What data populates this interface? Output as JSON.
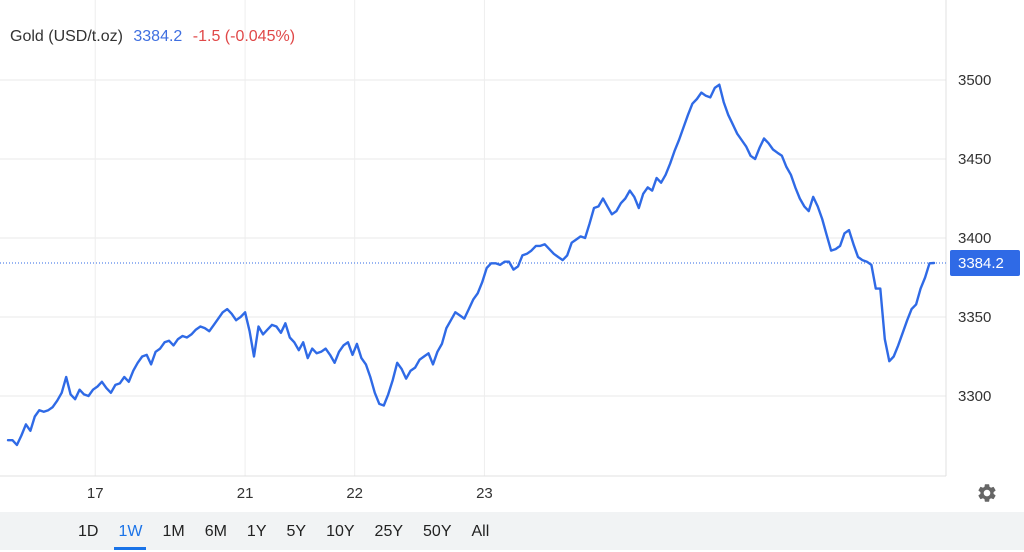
{
  "header": {
    "instrument": "Gold (USD/t.oz)",
    "price": "3384.2",
    "change": "-1.5 (-0.045%)"
  },
  "colors": {
    "line": "#2f6ae6",
    "price": "#3f6fe0",
    "change_negative": "#e04848",
    "active_range": "#1a73e8"
  },
  "ranges": {
    "items": [
      "1D",
      "1W",
      "1M",
      "6M",
      "1Y",
      "5Y",
      "10Y",
      "25Y",
      "50Y",
      "All"
    ],
    "active": "1W"
  },
  "settings_icon": "gear-icon",
  "chart_data": {
    "type": "line",
    "title": "Gold (USD/t.oz)",
    "xlabel": "",
    "ylabel": "",
    "ylim": [
      3250,
      3540
    ],
    "yticks": [
      3300,
      3350,
      3400,
      3450,
      3500
    ],
    "x_tick_labels": [
      {
        "label": "17",
        "index": 19.5
      },
      {
        "label": "21",
        "index": 53
      },
      {
        "label": "22",
        "index": 77.5
      },
      {
        "label": "23",
        "index": 106.5
      }
    ],
    "grid": "horizontal and at date ticks",
    "current_price": 3384.2,
    "current_price_label": "3384.2",
    "series": [
      {
        "name": "Gold",
        "values": [
          3272,
          3272,
          3269,
          3275,
          3282,
          3278,
          3287,
          3291,
          3290,
          3291,
          3293,
          3297,
          3302,
          3312,
          3301,
          3298,
          3304,
          3301,
          3300,
          3304,
          3306,
          3309,
          3305,
          3302,
          3307,
          3308,
          3312,
          3309,
          3316,
          3321,
          3325,
          3326,
          3320,
          3328,
          3330,
          3334,
          3335,
          3332,
          3336,
          3338,
          3337,
          3339,
          3342,
          3344,
          3343,
          3341,
          3345,
          3349,
          3353,
          3355,
          3352,
          3348,
          3350,
          3353,
          3341,
          3325,
          3344,
          3339,
          3342,
          3345,
          3344,
          3340,
          3346,
          3337,
          3334,
          3329,
          3334,
          3324,
          3330,
          3327,
          3328,
          3330,
          3326,
          3321,
          3328,
          3332,
          3334,
          3326,
          3333,
          3324,
          3320,
          3312,
          3302,
          3295,
          3294,
          3301,
          3310,
          3321,
          3317,
          3311,
          3316,
          3318,
          3323,
          3325,
          3327,
          3320,
          3328,
          3333,
          3343,
          3348,
          3353,
          3351,
          3349,
          3355,
          3361,
          3365,
          3372,
          3381,
          3384,
          3384,
          3383,
          3385,
          3385,
          3380,
          3382,
          3389,
          3390,
          3392,
          3395,
          3395,
          3396,
          3393,
          3390,
          3388,
          3386,
          3389,
          3397,
          3399,
          3401,
          3400,
          3409,
          3419,
          3420,
          3425,
          3420,
          3415,
          3417,
          3422,
          3425,
          3430,
          3426,
          3419,
          3428,
          3432,
          3430,
          3438,
          3435,
          3440,
          3447,
          3455,
          3462,
          3470,
          3478,
          3485,
          3488,
          3492,
          3490,
          3489,
          3495,
          3497,
          3486,
          3478,
          3472,
          3466,
          3462,
          3458,
          3452,
          3450,
          3457,
          3463,
          3460,
          3456,
          3454,
          3452,
          3445,
          3440,
          3432,
          3425,
          3420,
          3417,
          3426,
          3420,
          3412,
          3402,
          3392,
          3393,
          3395,
          3403,
          3405,
          3396,
          3388,
          3386,
          3385,
          3383,
          3368,
          3368,
          3336,
          3322,
          3325,
          3332,
          3340,
          3348,
          3355,
          3358,
          3368,
          3375,
          3384,
          3384.2
        ]
      }
    ]
  }
}
